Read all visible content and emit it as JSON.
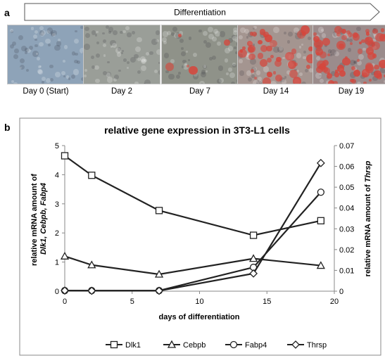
{
  "panel_a": {
    "letter": "a",
    "arrow_label": "Differentiation",
    "images": [
      {
        "label": "Day 0 (Start)",
        "tint": "#8ea3b8",
        "red": 0
      },
      {
        "label": "Day 2",
        "tint": "#9a9e98",
        "red": 0
      },
      {
        "label": "Day 7",
        "tint": "#8f9289",
        "red": 0.05
      },
      {
        "label": "Day 14",
        "tint": "#a49590",
        "red": 0.45
      },
      {
        "label": "Day 19",
        "tint": "#9b8c8c",
        "red": 0.75
      }
    ]
  },
  "panel_b": {
    "letter": "b"
  },
  "chart_data": {
    "type": "line",
    "title": "relative gene expression in 3T3-L1 cells",
    "xlabel": "days of differentiation",
    "ylabel_left": "relative mRNA amount of Dlk1, Cebpb, Fabp4",
    "ylabel_left_line1": "relative mRNA amount of",
    "ylabel_left_line2": "Dlk1, Cebpb, Fabp4",
    "ylabel_right": "relative mRNA amount of Thrsp",
    "ylabel_right_prefix": "relative mRNA amount of",
    "ylabel_right_gene": "Thrsp",
    "xlim": [
      0,
      20
    ],
    "ylim_left": [
      0,
      5
    ],
    "ylim_right": [
      0,
      0.07
    ],
    "xticks": [
      "0",
      "5",
      "10",
      "15",
      "20"
    ],
    "yticks_left": [
      "0",
      "1",
      "2",
      "3",
      "4",
      "5"
    ],
    "yticks_right": [
      "0",
      "0.01",
      "0.02",
      "0.03",
      "0.04",
      "0.05",
      "0.06",
      "0.07"
    ],
    "legend_position": "bottom",
    "series": [
      {
        "name": "Dlk1",
        "marker": "square",
        "axis": "left",
        "x": [
          0,
          2,
          7,
          14,
          19
        ],
        "y": [
          4.65,
          3.98,
          2.77,
          1.92,
          2.42
        ]
      },
      {
        "name": "Cebpb",
        "marker": "triangle",
        "axis": "left",
        "x": [
          0,
          2,
          7,
          14,
          19
        ],
        "y": [
          1.2,
          0.9,
          0.58,
          1.12,
          0.88
        ]
      },
      {
        "name": "Fabp4",
        "marker": "circle",
        "axis": "left",
        "x": [
          0,
          2,
          7,
          14,
          19
        ],
        "y": [
          0.02,
          0.02,
          0.02,
          0.82,
          3.4
        ]
      },
      {
        "name": "Thrsp",
        "marker": "diamond",
        "axis": "right",
        "x": [
          0,
          2,
          7,
          14,
          19
        ],
        "y": [
          0.0003,
          0.0002,
          0.0002,
          0.0085,
          0.0616
        ]
      }
    ]
  }
}
